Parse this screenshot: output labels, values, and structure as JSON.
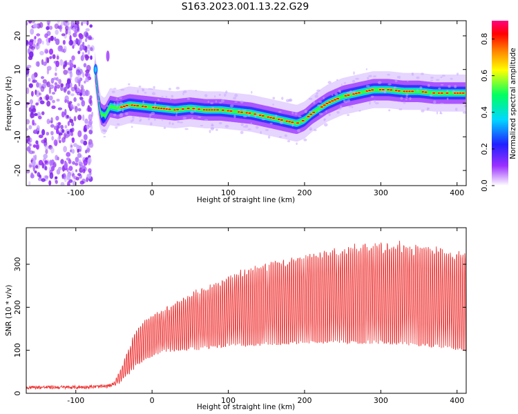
{
  "title": "S163.2023.001.13.22.G29",
  "colors": {
    "snr_line": "#ee3333",
    "colormap": [
      "#ffffff",
      "#9b30ff",
      "#2020ff",
      "#00d8ff",
      "#00ff60",
      "#ffff00",
      "#ff8000",
      "#ff0000",
      "#ff0080"
    ]
  },
  "chart_data": [
    {
      "type": "heatmap",
      "xlabel": "Height of straight line (km)",
      "ylabel": "Frequency (Hz)",
      "xlim": [
        -165,
        412
      ],
      "ylim": [
        -24.5,
        24.5
      ],
      "xticks": [
        -100,
        0,
        100,
        200,
        300,
        400
      ],
      "yticks": [
        -20,
        -10,
        0,
        10,
        20
      ],
      "grid": false,
      "noise_region_x": [
        -165,
        -78
      ],
      "ridge": {
        "x": [
          -75,
          -68,
          -62,
          -55,
          -45,
          -30,
          -10,
          10,
          30,
          50,
          70,
          90,
          110,
          130,
          150,
          170,
          190,
          200,
          210,
          230,
          250,
          270,
          290,
          310,
          330,
          350,
          370,
          390,
          412
        ],
        "frequency": [
          10,
          -3,
          -4,
          -1,
          -1.5,
          -0.5,
          -1,
          -1.5,
          -2,
          -1.5,
          -2,
          -2,
          -2.5,
          -3,
          -4,
          -5,
          -6,
          -5,
          -3,
          0,
          2,
          3,
          4,
          4,
          3.5,
          3.5,
          3,
          3,
          3
        ]
      },
      "colorbar": {
        "label": "Normalized spectral amplitude",
        "range": [
          0.0,
          0.9
        ],
        "ticks": [
          0.0,
          0.2,
          0.4,
          0.6,
          0.8
        ]
      }
    },
    {
      "type": "line",
      "xlabel": "Height of straight line (km)",
      "ylabel": "SNR (10 * v/v)",
      "xlim": [
        -165,
        412
      ],
      "ylim": [
        0,
        385
      ],
      "xticks": [
        -100,
        0,
        100,
        200,
        300,
        400
      ],
      "yticks": [
        0,
        100,
        200,
        300
      ],
      "grid": false,
      "series": [
        {
          "x": [
            -165,
            -100,
            -60,
            -50,
            -40,
            -30,
            -20,
            -10,
            0,
            10,
            20,
            40,
            60,
            80,
            100,
            120,
            140,
            160,
            180,
            200,
            220,
            240,
            260,
            280,
            300,
            320,
            340,
            360,
            380,
            400,
            412
          ],
          "upper": [
            18,
            18,
            20,
            25,
            60,
            110,
            150,
            170,
            180,
            190,
            200,
            220,
            240,
            255,
            270,
            285,
            295,
            305,
            315,
            325,
            330,
            335,
            340,
            345,
            350,
            350,
            345,
            340,
            335,
            330,
            325
          ],
          "lower": [
            10,
            10,
            12,
            15,
            25,
            40,
            60,
            75,
            85,
            90,
            95,
            100,
            100,
            105,
            108,
            108,
            110,
            112,
            113,
            115,
            115,
            115,
            115,
            115,
            115,
            113,
            110,
            108,
            105,
            100,
            95
          ]
        }
      ]
    }
  ]
}
